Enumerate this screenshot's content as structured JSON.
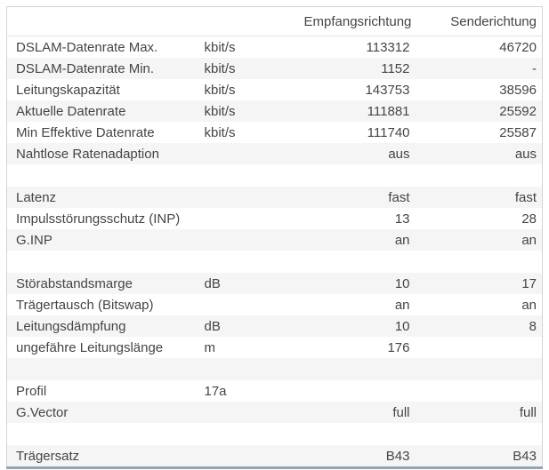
{
  "colors": {
    "stripe": "#f5f5f5",
    "border": "#d3d3d3",
    "bottom_border": "#97a3ad",
    "text": "#454545"
  },
  "table": {
    "header": {
      "label_col": "",
      "unit_col": "",
      "empfang": "Empfangsrichtung",
      "sende": "Senderichtung"
    },
    "rows": [
      {
        "label": "DSLAM-Datenrate Max.",
        "unit": "kbit/s",
        "rx": "113312",
        "tx": "46720"
      },
      {
        "label": "DSLAM-Datenrate Min.",
        "unit": "kbit/s",
        "rx": "1152",
        "tx": "-"
      },
      {
        "label": "Leitungskapazität",
        "unit": "kbit/s",
        "rx": "143753",
        "tx": "38596"
      },
      {
        "label": "Aktuelle Datenrate",
        "unit": "kbit/s",
        "rx": "111881",
        "tx": "25592"
      },
      {
        "label": "Min Effektive Datenrate",
        "unit": "kbit/s",
        "rx": "111740",
        "tx": "25587"
      },
      {
        "label": "Nahtlose Ratenadaption",
        "unit": "",
        "rx": "aus",
        "tx": "aus"
      },
      {
        "blank": true
      },
      {
        "label": "Latenz",
        "unit": "",
        "rx": "fast",
        "tx": "fast"
      },
      {
        "label": "Impulsstörungsschutz (INP)",
        "unit": "",
        "rx": "13",
        "tx": "28"
      },
      {
        "label": "G.INP",
        "unit": "",
        "rx": "an",
        "tx": "an"
      },
      {
        "blank": true
      },
      {
        "label": "Störabstandsmarge",
        "unit": "dB",
        "rx": "10",
        "tx": "17"
      },
      {
        "label": "Trägertausch (Bitswap)",
        "unit": "",
        "rx": "an",
        "tx": "an"
      },
      {
        "label": "Leitungsdämpfung",
        "unit": "dB",
        "rx": "10",
        "tx": "8"
      },
      {
        "label": "ungefähre Leitungslänge",
        "unit": "m",
        "rx": "176",
        "tx": ""
      },
      {
        "blank": true
      },
      {
        "label": "Profil",
        "unit": "17a",
        "rx": "",
        "tx": ""
      },
      {
        "label": "G.Vector",
        "unit": "",
        "rx": "full",
        "tx": "full"
      },
      {
        "blank": true
      },
      {
        "label": "Trägersatz",
        "unit": "",
        "rx": "B43",
        "tx": "B43"
      }
    ]
  }
}
